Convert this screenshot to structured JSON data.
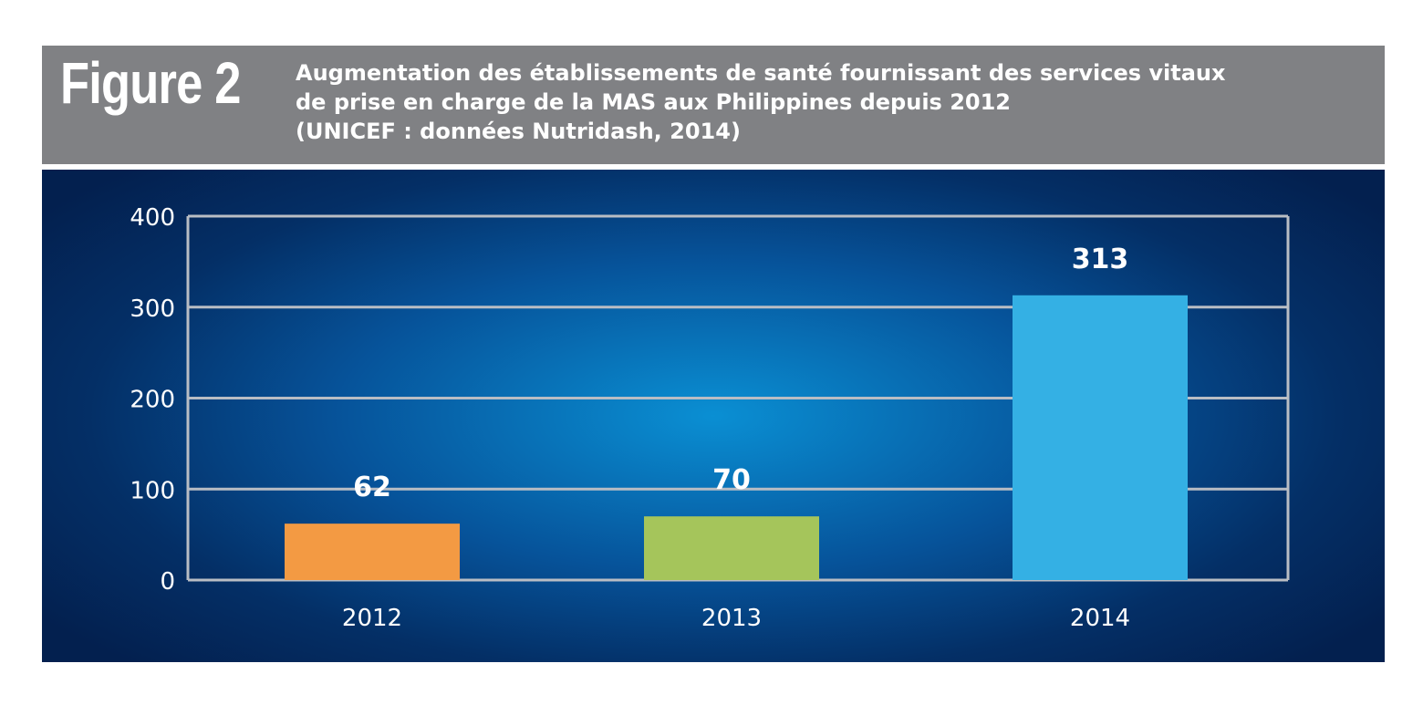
{
  "figure_label": "Figure 2",
  "title_lines": [
    "Augmentation des établissements de santé fournissant des services vitaux",
    "de prise en charge de la MAS aux Philippines depuis 2012",
    "(UNICEF : données Nutridash, 2014)"
  ],
  "chart_data": {
    "type": "bar",
    "title": "Augmentation des établissements de santé fournissant des services vitaux de prise en charge de la MAS aux Philippines depuis 2012 (UNICEF : données Nutridash, 2014)",
    "categories": [
      "2012",
      "2013",
      "2014"
    ],
    "values": [
      62,
      70,
      313
    ],
    "value_labels": [
      "62",
      "70",
      "313"
    ],
    "bar_colors": [
      "#f39a43",
      "#a5c55b",
      "#34b0e4"
    ],
    "ylim": [
      0,
      400
    ],
    "yticks": [
      0,
      100,
      200,
      300,
      400
    ],
    "grid": true,
    "xlabel": "",
    "ylabel": ""
  }
}
